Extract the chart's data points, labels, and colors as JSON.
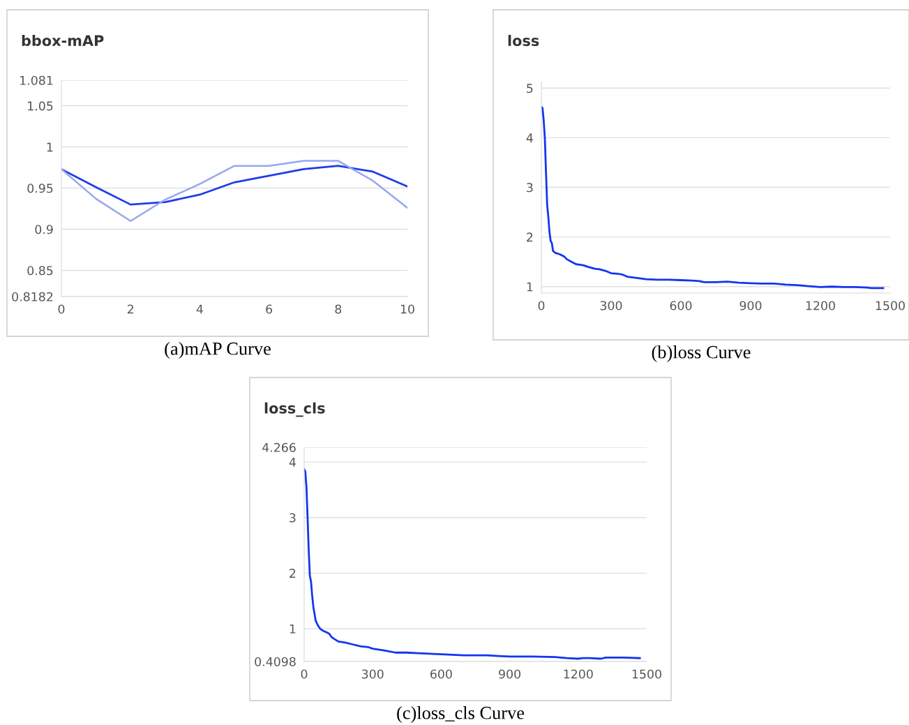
{
  "chart_data": [
    {
      "type": "line",
      "title": "bbox-mAP",
      "annotations": [
        "(a)mAP Curve"
      ],
      "x": [
        0,
        1,
        2,
        3,
        4,
        5,
        6,
        7,
        8,
        9,
        10
      ],
      "series": [
        {
          "color": "#1f3de8",
          "values": [
            0.973,
            0.951,
            0.93,
            0.933,
            0.942,
            0.957,
            0.965,
            0.973,
            0.977,
            0.97,
            0.952
          ]
        },
        {
          "color": "#97a7f0",
          "values": [
            0.973,
            0.937,
            0.91,
            0.936,
            0.955,
            0.977,
            0.977,
            0.983,
            0.983,
            0.959,
            0.926
          ]
        }
      ],
      "xlim": [
        0,
        10
      ],
      "xticks": [
        0,
        2,
        4,
        6,
        8,
        10
      ],
      "ylim": [
        0.8182,
        1.081
      ],
      "yticks": [
        0.8182,
        0.85,
        0.9,
        0.95,
        1,
        1.05,
        1.081
      ],
      "grid": "y",
      "marker": "none",
      "line_style": "solid"
    },
    {
      "type": "line",
      "title": "loss",
      "annotations": [
        "(b)loss Curve"
      ],
      "series": [
        {
          "color": "#1236f0",
          "x": [
            0,
            5,
            10,
            15,
            20,
            25,
            30,
            35,
            40,
            45,
            50,
            55,
            60,
            80,
            100,
            110,
            130,
            150,
            180,
            200,
            230,
            250,
            280,
            300,
            330,
            350,
            370,
            400,
            450,
            500,
            550,
            600,
            650,
            680,
            700,
            750,
            800,
            850,
            900,
            950,
            1000,
            1050,
            1100,
            1150,
            1200,
            1250,
            1300,
            1350,
            1400,
            1420,
            1470
          ],
          "values": [
            4.62,
            4.6,
            4.35,
            4.0,
            3.3,
            2.65,
            2.4,
            2.1,
            1.92,
            1.88,
            1.72,
            1.7,
            1.68,
            1.65,
            1.6,
            1.55,
            1.5,
            1.45,
            1.43,
            1.4,
            1.36,
            1.35,
            1.31,
            1.27,
            1.26,
            1.24,
            1.2,
            1.18,
            1.15,
            1.14,
            1.14,
            1.13,
            1.12,
            1.11,
            1.09,
            1.09,
            1.1,
            1.08,
            1.07,
            1.06,
            1.06,
            1.04,
            1.03,
            1.01,
            0.99,
            1.0,
            0.99,
            0.99,
            0.98,
            0.97,
            0.97
          ]
        }
      ],
      "xlim": [
        0,
        1500
      ],
      "xticks": [
        0,
        300,
        600,
        900,
        1200,
        1500
      ],
      "ylim": [
        0.87,
        5.13
      ],
      "yticks": [
        1,
        2,
        3,
        4,
        5
      ],
      "grid": "y",
      "marker": "none",
      "line_style": "solid"
    },
    {
      "type": "line",
      "title": "loss_cls",
      "annotations": [
        "(c)loss_cls Curve"
      ],
      "series": [
        {
          "color": "#1236f0",
          "x": [
            0,
            5,
            10,
            15,
            20,
            25,
            30,
            35,
            40,
            45,
            50,
            60,
            70,
            80,
            100,
            110,
            120,
            130,
            150,
            180,
            200,
            230,
            250,
            280,
            300,
            350,
            400,
            450,
            500,
            550,
            600,
            650,
            700,
            750,
            800,
            850,
            900,
            1000,
            1100,
            1150,
            1200,
            1220,
            1250,
            1300,
            1320,
            1400,
            1470
          ],
          "values": [
            3.87,
            3.83,
            3.55,
            3.0,
            2.4,
            1.95,
            1.85,
            1.6,
            1.4,
            1.28,
            1.15,
            1.06,
            1.0,
            0.97,
            0.93,
            0.91,
            0.85,
            0.82,
            0.77,
            0.75,
            0.73,
            0.7,
            0.68,
            0.67,
            0.64,
            0.61,
            0.57,
            0.57,
            0.56,
            0.55,
            0.54,
            0.53,
            0.52,
            0.52,
            0.52,
            0.51,
            0.5,
            0.5,
            0.49,
            0.47,
            0.46,
            0.47,
            0.47,
            0.46,
            0.48,
            0.48,
            0.47
          ]
        }
      ],
      "xlim": [
        0,
        1500
      ],
      "xticks": [
        0,
        300,
        600,
        900,
        1200,
        1500
      ],
      "ylim": [
        0.4098,
        4.266
      ],
      "yticks": [
        0.4098,
        1,
        2,
        3,
        4,
        4.266
      ],
      "grid": "y",
      "marker": "none",
      "line_style": "solid"
    }
  ]
}
